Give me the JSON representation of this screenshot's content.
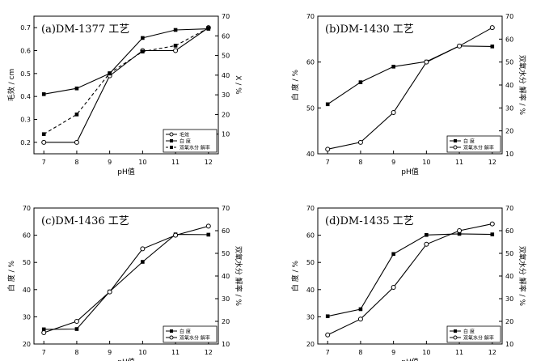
{
  "chart_data": [
    {
      "type": "line",
      "title": "(a)DM-1377 工艺",
      "xlabel": "pH值",
      "ylabel_left": "毛效 / cm",
      "ylabel_right": "X / %",
      "x": [
        7,
        8,
        9,
        10,
        11,
        12
      ],
      "xlim": [
        6.7,
        12.3
      ],
      "ylim_left": [
        0.15,
        0.75
      ],
      "yticks_left": [
        0.2,
        0.3,
        0.4,
        0.5,
        0.6,
        0.7
      ],
      "ylim_right": [
        0,
        70
      ],
      "yticks_right": [
        10,
        20,
        30,
        40,
        50,
        60,
        70
      ],
      "legend": "bottom-right",
      "series": [
        {
          "name": "毛效",
          "axis": "left",
          "marker": "open-circle",
          "dash": "solid",
          "values": [
            0.2,
            0.2,
            0.49,
            0.6,
            0.6,
            0.7
          ]
        },
        {
          "name": "白 度",
          "axis": "left",
          "marker": "filled-square",
          "dash": "solid",
          "values": [
            0.41,
            0.435,
            0.5,
            0.655,
            0.69,
            0.695
          ]
        },
        {
          "name": "双氧水分 解率",
          "axis": "right",
          "marker": "filled-square",
          "dash": "dashed",
          "values": [
            10,
            20,
            41,
            52,
            55,
            64
          ]
        }
      ]
    },
    {
      "type": "line",
      "title": "(b)DM-1430 工艺",
      "xlabel": "pH值",
      "ylabel_left": "白 度 / %",
      "ylabel_right": "双氧水分 解率 / %",
      "x": [
        7,
        8,
        9,
        10,
        11,
        12
      ],
      "xlim": [
        6.7,
        12.3
      ],
      "ylim_left": [
        40,
        70
      ],
      "yticks_left": [
        40,
        50,
        60,
        70
      ],
      "ylim_right": [
        10,
        70
      ],
      "yticks_right": [
        10,
        20,
        30,
        40,
        50,
        60,
        70
      ],
      "legend": "bottom-right",
      "series": [
        {
          "name": "白 度",
          "axis": "left",
          "marker": "filled-square",
          "dash": "solid",
          "values": [
            50.8,
            55.6,
            59.0,
            60.1,
            63.5,
            63.4
          ]
        },
        {
          "name": "双氧水分 解率",
          "axis": "right",
          "marker": "open-circle",
          "dash": "solid",
          "values": [
            12,
            15,
            28,
            50,
            57,
            65
          ]
        }
      ]
    },
    {
      "type": "line",
      "title": "(c)DM-1436 工艺",
      "xlabel": "pH值",
      "ylabel_left": "白 度 / %",
      "ylabel_right": "双氧水分 解率 / %",
      "x": [
        7,
        8,
        9,
        10,
        11,
        12
      ],
      "xlim": [
        6.7,
        12.3
      ],
      "ylim_left": [
        20,
        70
      ],
      "yticks_left": [
        20,
        30,
        40,
        50,
        60,
        70
      ],
      "ylim_right": [
        10,
        70
      ],
      "yticks_right": [
        10,
        20,
        30,
        40,
        50,
        60,
        70
      ],
      "legend": "bottom-right",
      "series": [
        {
          "name": "白 度",
          "axis": "left",
          "marker": "filled-square",
          "dash": "solid",
          "values": [
            25.4,
            25.5,
            39.3,
            50.2,
            60.3,
            60.2
          ]
        },
        {
          "name": "双氧水分 解率",
          "axis": "right",
          "marker": "open-circle",
          "dash": "solid",
          "values": [
            15,
            20,
            33,
            52,
            58,
            62
          ]
        }
      ]
    },
    {
      "type": "line",
      "title": "(d)DM-1435 工艺",
      "xlabel": "pH值",
      "ylabel_left": "白 度 / %",
      "ylabel_right": "双氧水分 解率 / %",
      "x": [
        7,
        8,
        9,
        10,
        11,
        12
      ],
      "xlim": [
        6.7,
        12.3
      ],
      "ylim_left": [
        20,
        70
      ],
      "yticks_left": [
        20,
        30,
        40,
        50,
        60,
        70
      ],
      "ylim_right": [
        10,
        70
      ],
      "yticks_right": [
        10,
        20,
        30,
        40,
        50,
        60,
        70
      ],
      "legend": "bottom-right",
      "series": [
        {
          "name": "白 度",
          "axis": "left",
          "marker": "filled-square",
          "dash": "solid",
          "values": [
            30.2,
            32.8,
            53.1,
            60.1,
            60.5,
            60.3
          ]
        },
        {
          "name": "双氧水分 解率",
          "axis": "right",
          "marker": "open-circle",
          "dash": "solid",
          "values": [
            14,
            21,
            35,
            54,
            60,
            63
          ]
        }
      ]
    }
  ]
}
